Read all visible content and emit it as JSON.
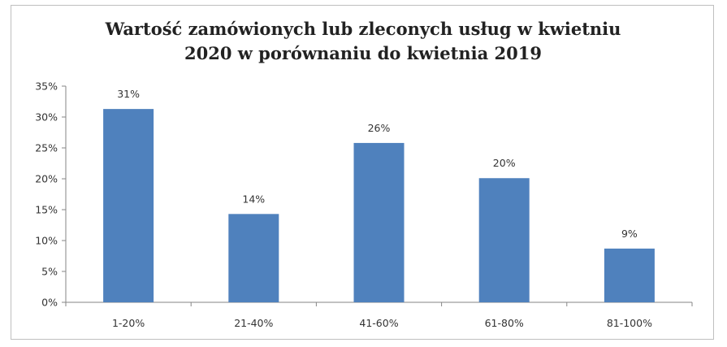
{
  "chart_data": {
    "type": "bar",
    "title_lines": [
      "Wartość zamówionych lub zleconych usług w kwietniu",
      "2020 w porównaniu do kwietnia 2019"
    ],
    "categories": [
      "1-20%",
      "21-40%",
      "41-60%",
      "61-80%",
      "81-100%"
    ],
    "values": [
      31.3,
      14.3,
      25.8,
      20.1,
      8.7
    ],
    "data_labels": [
      "31%",
      "14%",
      "26%",
      "20%",
      "9%"
    ],
    "xlabel": "",
    "ylabel": "",
    "ylim": [
      0,
      35
    ],
    "yticks": [
      0,
      5,
      10,
      15,
      20,
      25,
      30,
      35
    ],
    "ytick_labels": [
      "0%",
      "5%",
      "10%",
      "15%",
      "20%",
      "25%",
      "30%",
      "35%"
    ],
    "grid": false,
    "legend": "none",
    "bar_color": "#4f81bd"
  }
}
